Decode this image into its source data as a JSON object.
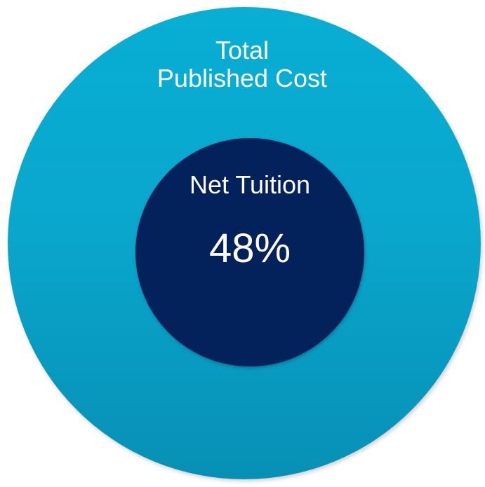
{
  "diagram": {
    "outer": {
      "label_line1": "Total",
      "label_line2": "Published Cost",
      "color": "#0aa7cd"
    },
    "inner": {
      "label": "Net Tuition",
      "value": "48%",
      "color": "#03215a"
    }
  }
}
